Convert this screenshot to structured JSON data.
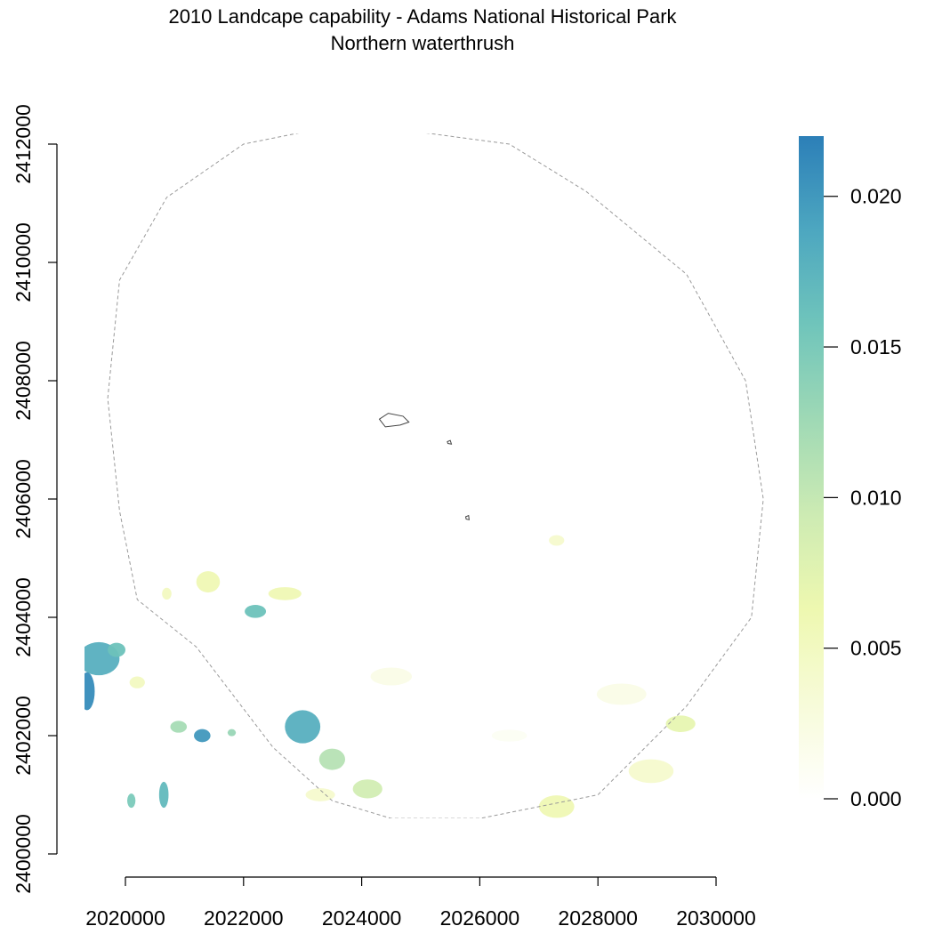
{
  "title": "2010 Landcape capability - Adams National Historical Park",
  "subtitle": "Northern waterthrush",
  "x_axis": {
    "ticks": [
      2020000,
      2022000,
      2024000,
      2026000,
      2028000,
      2030000
    ],
    "tick_labels": [
      "2020000",
      "2022000",
      "2024000",
      "2026000",
      "2028000",
      "2030000"
    ],
    "range": [
      2020000,
      2030000
    ]
  },
  "y_axis": {
    "ticks": [
      2400000,
      2402000,
      2404000,
      2406000,
      2408000,
      2410000,
      2412000
    ],
    "tick_labels": [
      "2400000",
      "2402000",
      "2404000",
      "2406000",
      "2408000",
      "2410000",
      "2412000"
    ],
    "range": [
      2400000,
      2412000
    ]
  },
  "legend": {
    "ticks": [
      0.0,
      0.005,
      0.01,
      0.015,
      0.02
    ],
    "tick_labels": [
      "0.000",
      "0.005",
      "0.010",
      "0.015",
      "0.020"
    ],
    "range": [
      0.0,
      0.022
    ],
    "colors": [
      "#ffffff",
      "#f7fbd9",
      "#eef8b0",
      "#cdebb3",
      "#9fd9b5",
      "#70c5bb",
      "#4da7c0",
      "#2c7fb8"
    ],
    "placement": "right"
  },
  "chart_data": {
    "type": "heatmap",
    "variable": "Landscape capability",
    "xlim": [
      2020000,
      2030000
    ],
    "ylim": [
      2400000,
      2412000
    ],
    "zlim": [
      0.0,
      0.022
    ],
    "study_area_boundary": {
      "style": "dashed grey",
      "points": [
        [
          2019700,
          2407700
        ],
        [
          2019900,
          2409700
        ],
        [
          2020700,
          2411100
        ],
        [
          2022000,
          2412000
        ],
        [
          2023500,
          2412300
        ],
        [
          2025000,
          2412200
        ],
        [
          2026500,
          2412000
        ],
        [
          2027800,
          2411200
        ],
        [
          2029500,
          2409800
        ],
        [
          2030500,
          2408000
        ],
        [
          2030800,
          2406000
        ],
        [
          2030600,
          2404000
        ],
        [
          2029500,
          2402500
        ],
        [
          2028000,
          2401000
        ],
        [
          2026000,
          2400600
        ],
        [
          2024500,
          2400600
        ],
        [
          2023500,
          2400900
        ],
        [
          2022500,
          2401800
        ],
        [
          2021200,
          2403500
        ],
        [
          2020200,
          2404300
        ],
        [
          2019900,
          2405800
        ],
        [
          2019700,
          2407700
        ]
      ]
    },
    "park_units": {
      "style": "solid dark grey",
      "polygons": [
        [
          [
            2024300,
            2407350
          ],
          [
            2024450,
            2407450
          ],
          [
            2024700,
            2407400
          ],
          [
            2024800,
            2407300
          ],
          [
            2024650,
            2407250
          ],
          [
            2024400,
            2407220
          ],
          [
            2024300,
            2407350
          ]
        ],
        [
          [
            2025450,
            2406970
          ],
          [
            2025500,
            2406990
          ],
          [
            2025520,
            2406930
          ],
          [
            2025460,
            2406940
          ],
          [
            2025450,
            2406970
          ]
        ],
        [
          [
            2025760,
            2405700
          ],
          [
            2025810,
            2405720
          ],
          [
            2025820,
            2405650
          ],
          [
            2025770,
            2405660
          ],
          [
            2025760,
            2405700
          ]
        ]
      ]
    },
    "capability_patches": [
      {
        "x": 2019550,
        "y": 2403300,
        "rx": 350,
        "ry": 280,
        "value": 0.018
      },
      {
        "x": 2019350,
        "y": 2402750,
        "rx": 130,
        "ry": 320,
        "value": 0.021
      },
      {
        "x": 2019850,
        "y": 2403450,
        "rx": 150,
        "ry": 120,
        "value": 0.016
      },
      {
        "x": 2021300,
        "y": 2402000,
        "rx": 140,
        "ry": 110,
        "value": 0.02
      },
      {
        "x": 2020900,
        "y": 2402150,
        "rx": 140,
        "ry": 100,
        "value": 0.012
      },
      {
        "x": 2021800,
        "y": 2402050,
        "rx": 70,
        "ry": 60,
        "value": 0.013
      },
      {
        "x": 2023000,
        "y": 2402150,
        "rx": 300,
        "ry": 280,
        "value": 0.018
      },
      {
        "x": 2023500,
        "y": 2401600,
        "rx": 220,
        "ry": 180,
        "value": 0.011
      },
      {
        "x": 2024100,
        "y": 2401100,
        "rx": 250,
        "ry": 160,
        "value": 0.009
      },
      {
        "x": 2023300,
        "y": 2401000,
        "rx": 250,
        "ry": 110,
        "value": 0.004
      },
      {
        "x": 2020650,
        "y": 2401000,
        "rx": 80,
        "ry": 220,
        "value": 0.017
      },
      {
        "x": 2020100,
        "y": 2400900,
        "rx": 70,
        "ry": 120,
        "value": 0.015
      },
      {
        "x": 2021400,
        "y": 2404600,
        "rx": 200,
        "ry": 180,
        "value": 0.006
      },
      {
        "x": 2022200,
        "y": 2404100,
        "rx": 180,
        "ry": 110,
        "value": 0.016
      },
      {
        "x": 2022700,
        "y": 2404400,
        "rx": 280,
        "ry": 110,
        "value": 0.006
      },
      {
        "x": 2020700,
        "y": 2404400,
        "rx": 80,
        "ry": 100,
        "value": 0.005
      },
      {
        "x": 2020200,
        "y": 2402900,
        "rx": 130,
        "ry": 100,
        "value": 0.005
      },
      {
        "x": 2027300,
        "y": 2400800,
        "rx": 300,
        "ry": 190,
        "value": 0.006
      },
      {
        "x": 2029400,
        "y": 2402200,
        "rx": 250,
        "ry": 140,
        "value": 0.007
      },
      {
        "x": 2028900,
        "y": 2401400,
        "rx": 380,
        "ry": 200,
        "value": 0.004
      },
      {
        "x": 2028400,
        "y": 2402700,
        "rx": 420,
        "ry": 180,
        "value": 0.002
      },
      {
        "x": 2027300,
        "y": 2405300,
        "rx": 130,
        "ry": 90,
        "value": 0.004
      },
      {
        "x": 2024500,
        "y": 2403000,
        "rx": 350,
        "ry": 150,
        "value": 0.002
      },
      {
        "x": 2026500,
        "y": 2402000,
        "rx": 300,
        "ry": 100,
        "value": 0.001
      }
    ]
  }
}
